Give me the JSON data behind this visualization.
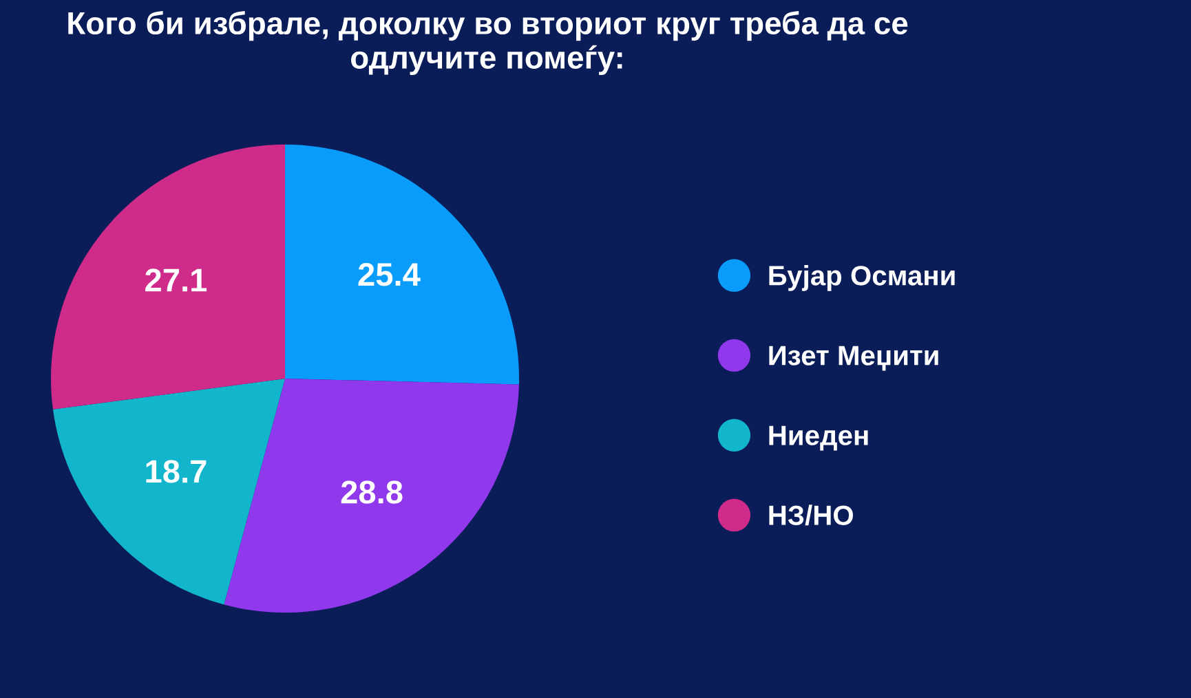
{
  "chart_data": {
    "type": "pie",
    "title": "Кого би избрале, доколку во вториот круг треба да се одлучите помеѓу:",
    "categories": [
      "Бујар Османи",
      "Изет Меџити",
      "Ниеден",
      "НЗ/НО"
    ],
    "values": [
      25.4,
      28.8,
      18.7,
      27.1
    ],
    "colors": [
      "#0a9cfb",
      "#8f38ec",
      "#12b6cc",
      "#cf2b8a"
    ],
    "data_labels": true,
    "legend": "right"
  }
}
